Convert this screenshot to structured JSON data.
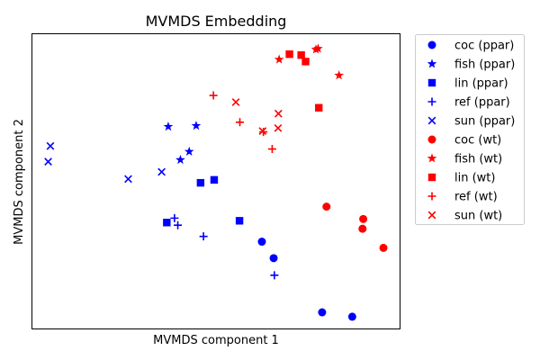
{
  "chart_data": {
    "type": "scatter",
    "title": "MVMDS Embedding",
    "xlabel": "MVMDS component 1",
    "ylabel": "MVMDS component 2",
    "xlim": [
      0,
      100
    ],
    "ylim": [
      0,
      100
    ],
    "x_ticks_shown": false,
    "y_ticks_shown": false,
    "grid": false,
    "legend_position": "outside-right",
    "series": [
      {
        "name": "coc (ppar)",
        "color": "#0000ff",
        "marker": "circle",
        "points": [
          [
            62.5,
            29.5
          ],
          [
            65.7,
            23.9
          ],
          [
            78.9,
            5.5
          ],
          [
            87.1,
            4.0
          ]
        ]
      },
      {
        "name": "fish (ppar)",
        "color": "#0000ff",
        "marker": "star",
        "points": [
          [
            37.0,
            68.6
          ],
          [
            44.6,
            68.9
          ],
          [
            40.3,
            57.3
          ],
          [
            42.7,
            60.1
          ]
        ]
      },
      {
        "name": "lin (ppar)",
        "color": "#0000ff",
        "marker": "square",
        "points": [
          [
            45.8,
            49.5
          ],
          [
            49.5,
            50.5
          ],
          [
            36.6,
            36.0
          ],
          [
            56.4,
            36.6
          ]
        ]
      },
      {
        "name": "ref (ppar)",
        "color": "#0000ff",
        "marker": "plus",
        "points": [
          [
            38.7,
            37.5
          ],
          [
            39.6,
            35.1
          ],
          [
            46.6,
            31.3
          ],
          [
            65.9,
            18.1
          ]
        ]
      },
      {
        "name": "sun (ppar)",
        "color": "#0000ff",
        "marker": "x",
        "points": [
          [
            4.9,
            62.0
          ],
          [
            4.3,
            56.7
          ],
          [
            26.1,
            50.8
          ],
          [
            35.2,
            53.2
          ]
        ]
      },
      {
        "name": "coc (wt)",
        "color": "#ff0000",
        "marker": "circle",
        "points": [
          [
            80.1,
            41.4
          ],
          [
            90.1,
            37.2
          ],
          [
            89.9,
            33.9
          ],
          [
            95.6,
            27.4
          ]
        ]
      },
      {
        "name": "fish (wt)",
        "color": "#ff0000",
        "marker": "star",
        "points": [
          [
            67.2,
            91.4
          ],
          [
            77.2,
            94.8
          ],
          [
            77.8,
            95.1
          ],
          [
            83.5,
            86.0
          ]
        ]
      },
      {
        "name": "lin (wt)",
        "color": "#ff0000",
        "marker": "square",
        "points": [
          [
            70.0,
            93.2
          ],
          [
            73.2,
            92.9
          ],
          [
            74.4,
            90.7
          ],
          [
            78.0,
            75.0
          ]
        ]
      },
      {
        "name": "ref (wt)",
        "color": "#ff0000",
        "marker": "plus",
        "points": [
          [
            49.3,
            79.2
          ],
          [
            56.5,
            70.1
          ],
          [
            62.9,
            66.8
          ],
          [
            65.3,
            61.0
          ]
        ]
      },
      {
        "name": "sun (wt)",
        "color": "#ff0000",
        "marker": "x",
        "points": [
          [
            55.4,
            76.9
          ],
          [
            67.0,
            73.0
          ],
          [
            62.7,
            67.1
          ],
          [
            66.9,
            68.1
          ]
        ]
      }
    ]
  }
}
